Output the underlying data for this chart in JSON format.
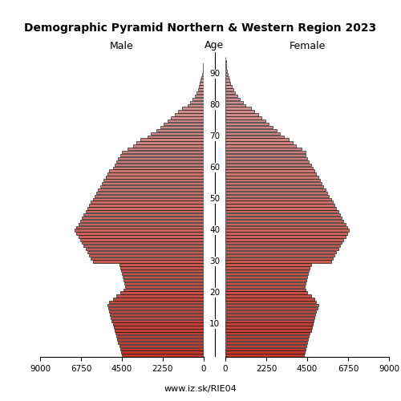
{
  "title": "Demographic Pyramid Northern & Western Region 2023",
  "male_label": "Male",
  "female_label": "Female",
  "age_label": "Age",
  "source": "www.iz.sk/RIE04",
  "xlim": 9000,
  "bar_linewidth": 0.4,
  "ages": [
    0,
    1,
    2,
    3,
    4,
    5,
    6,
    7,
    8,
    9,
    10,
    11,
    12,
    13,
    14,
    15,
    16,
    17,
    18,
    19,
    20,
    21,
    22,
    23,
    24,
    25,
    26,
    27,
    28,
    29,
    30,
    31,
    32,
    33,
    34,
    35,
    36,
    37,
    38,
    39,
    40,
    41,
    42,
    43,
    44,
    45,
    46,
    47,
    48,
    49,
    50,
    51,
    52,
    53,
    54,
    55,
    56,
    57,
    58,
    59,
    60,
    61,
    62,
    63,
    64,
    65,
    66,
    67,
    68,
    69,
    70,
    71,
    72,
    73,
    74,
    75,
    76,
    77,
    78,
    79,
    80,
    81,
    82,
    83,
    84,
    85,
    86,
    87,
    88,
    89,
    90,
    91,
    92,
    93,
    94,
    95
  ],
  "male": [
    4500,
    4550,
    4600,
    4650,
    4700,
    4750,
    4800,
    4850,
    4900,
    4950,
    5000,
    5050,
    5100,
    5150,
    5200,
    5250,
    5300,
    5200,
    5000,
    4800,
    4600,
    4400,
    4300,
    4350,
    4400,
    4450,
    4500,
    4550,
    4600,
    4650,
    6100,
    6200,
    6300,
    6400,
    6500,
    6600,
    6700,
    6800,
    6900,
    7000,
    7100,
    7000,
    6900,
    6800,
    6700,
    6600,
    6500,
    6400,
    6300,
    6200,
    6100,
    6000,
    5900,
    5800,
    5700,
    5600,
    5500,
    5400,
    5300,
    5200,
    5000,
    4900,
    4800,
    4700,
    4600,
    4500,
    4200,
    3900,
    3700,
    3500,
    3100,
    2900,
    2600,
    2400,
    2200,
    2000,
    1800,
    1600,
    1400,
    1200,
    900,
    750,
    600,
    500,
    400,
    320,
    260,
    200,
    160,
    120,
    80,
    60,
    40,
    25,
    15,
    8
  ],
  "female": [
    4300,
    4350,
    4400,
    4450,
    4500,
    4550,
    4600,
    4650,
    4700,
    4750,
    4800,
    4850,
    4900,
    4950,
    5000,
    5050,
    5100,
    5000,
    4900,
    4700,
    4500,
    4400,
    4350,
    4400,
    4450,
    4500,
    4550,
    4600,
    4650,
    4700,
    5800,
    5900,
    6000,
    6100,
    6200,
    6300,
    6400,
    6500,
    6600,
    6700,
    6800,
    6700,
    6600,
    6500,
    6400,
    6300,
    6200,
    6100,
    6000,
    5900,
    5800,
    5700,
    5600,
    5500,
    5400,
    5300,
    5200,
    5100,
    5000,
    4900,
    4800,
    4700,
    4600,
    4500,
    4400,
    4400,
    4200,
    3900,
    3700,
    3500,
    3200,
    3000,
    2800,
    2600,
    2400,
    2200,
    2000,
    1800,
    1600,
    1400,
    1100,
    950,
    800,
    650,
    520,
    420,
    340,
    270,
    210,
    160,
    110,
    80,
    55,
    35,
    20,
    10
  ],
  "age_ticks": [
    10,
    20,
    30,
    40,
    50,
    60,
    70,
    80,
    90
  ]
}
